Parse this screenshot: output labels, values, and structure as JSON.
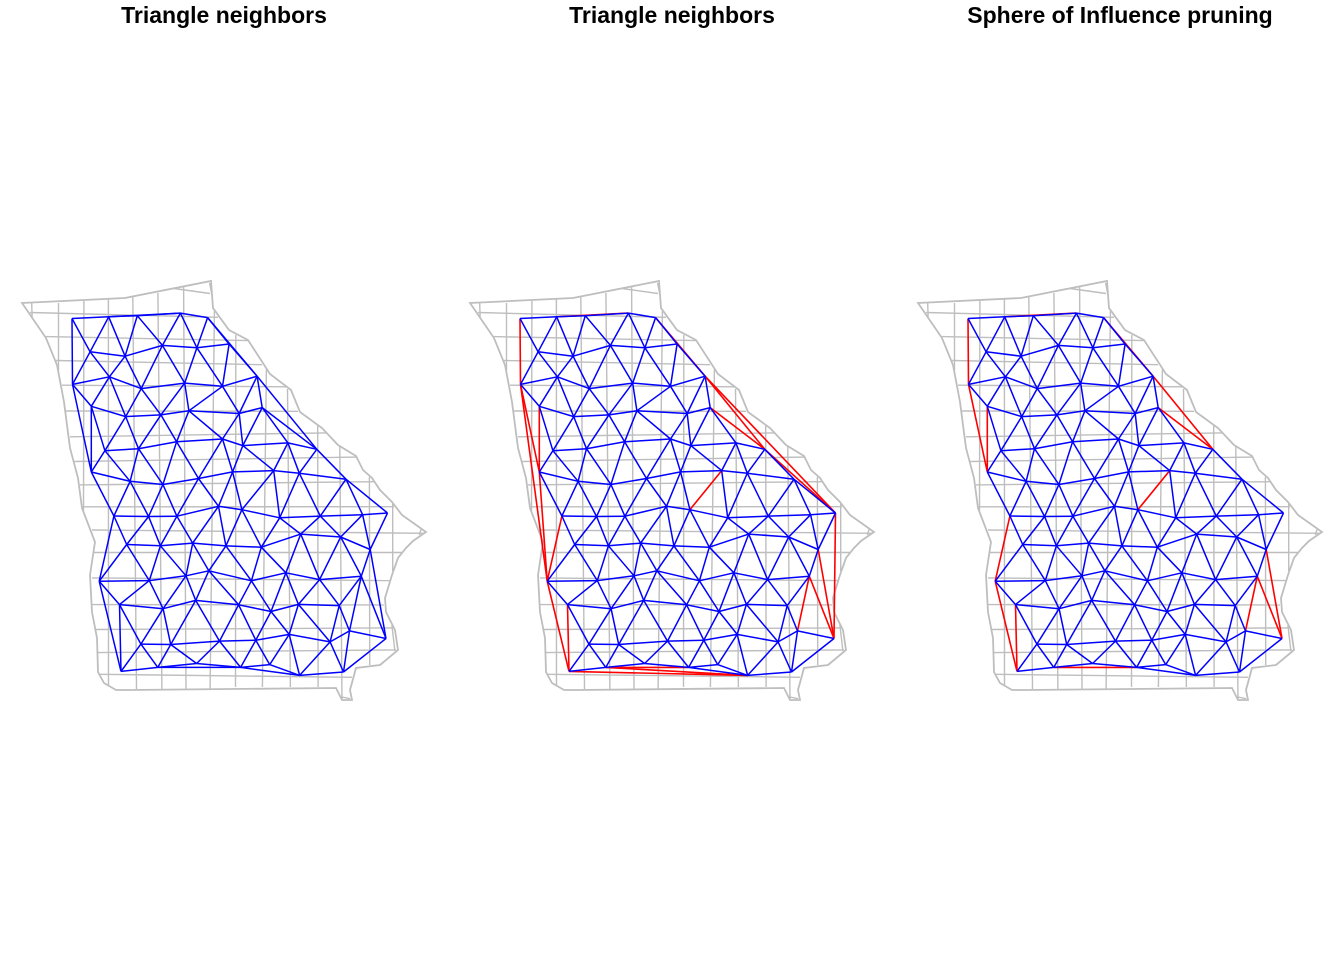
{
  "colors": {
    "boundary": "#bebebe",
    "neighbor_edge": "#0000ff",
    "highlight_edge": "#ff0000",
    "background": "#ffffff"
  },
  "panels": [
    {
      "title": "Triangle neighbors",
      "red_mode": "none"
    },
    {
      "title": "Triangle neighbors",
      "red_mode": "hull"
    },
    {
      "title": "Sphere of Influence pruning",
      "red_mode": "pruned"
    }
  ]
}
